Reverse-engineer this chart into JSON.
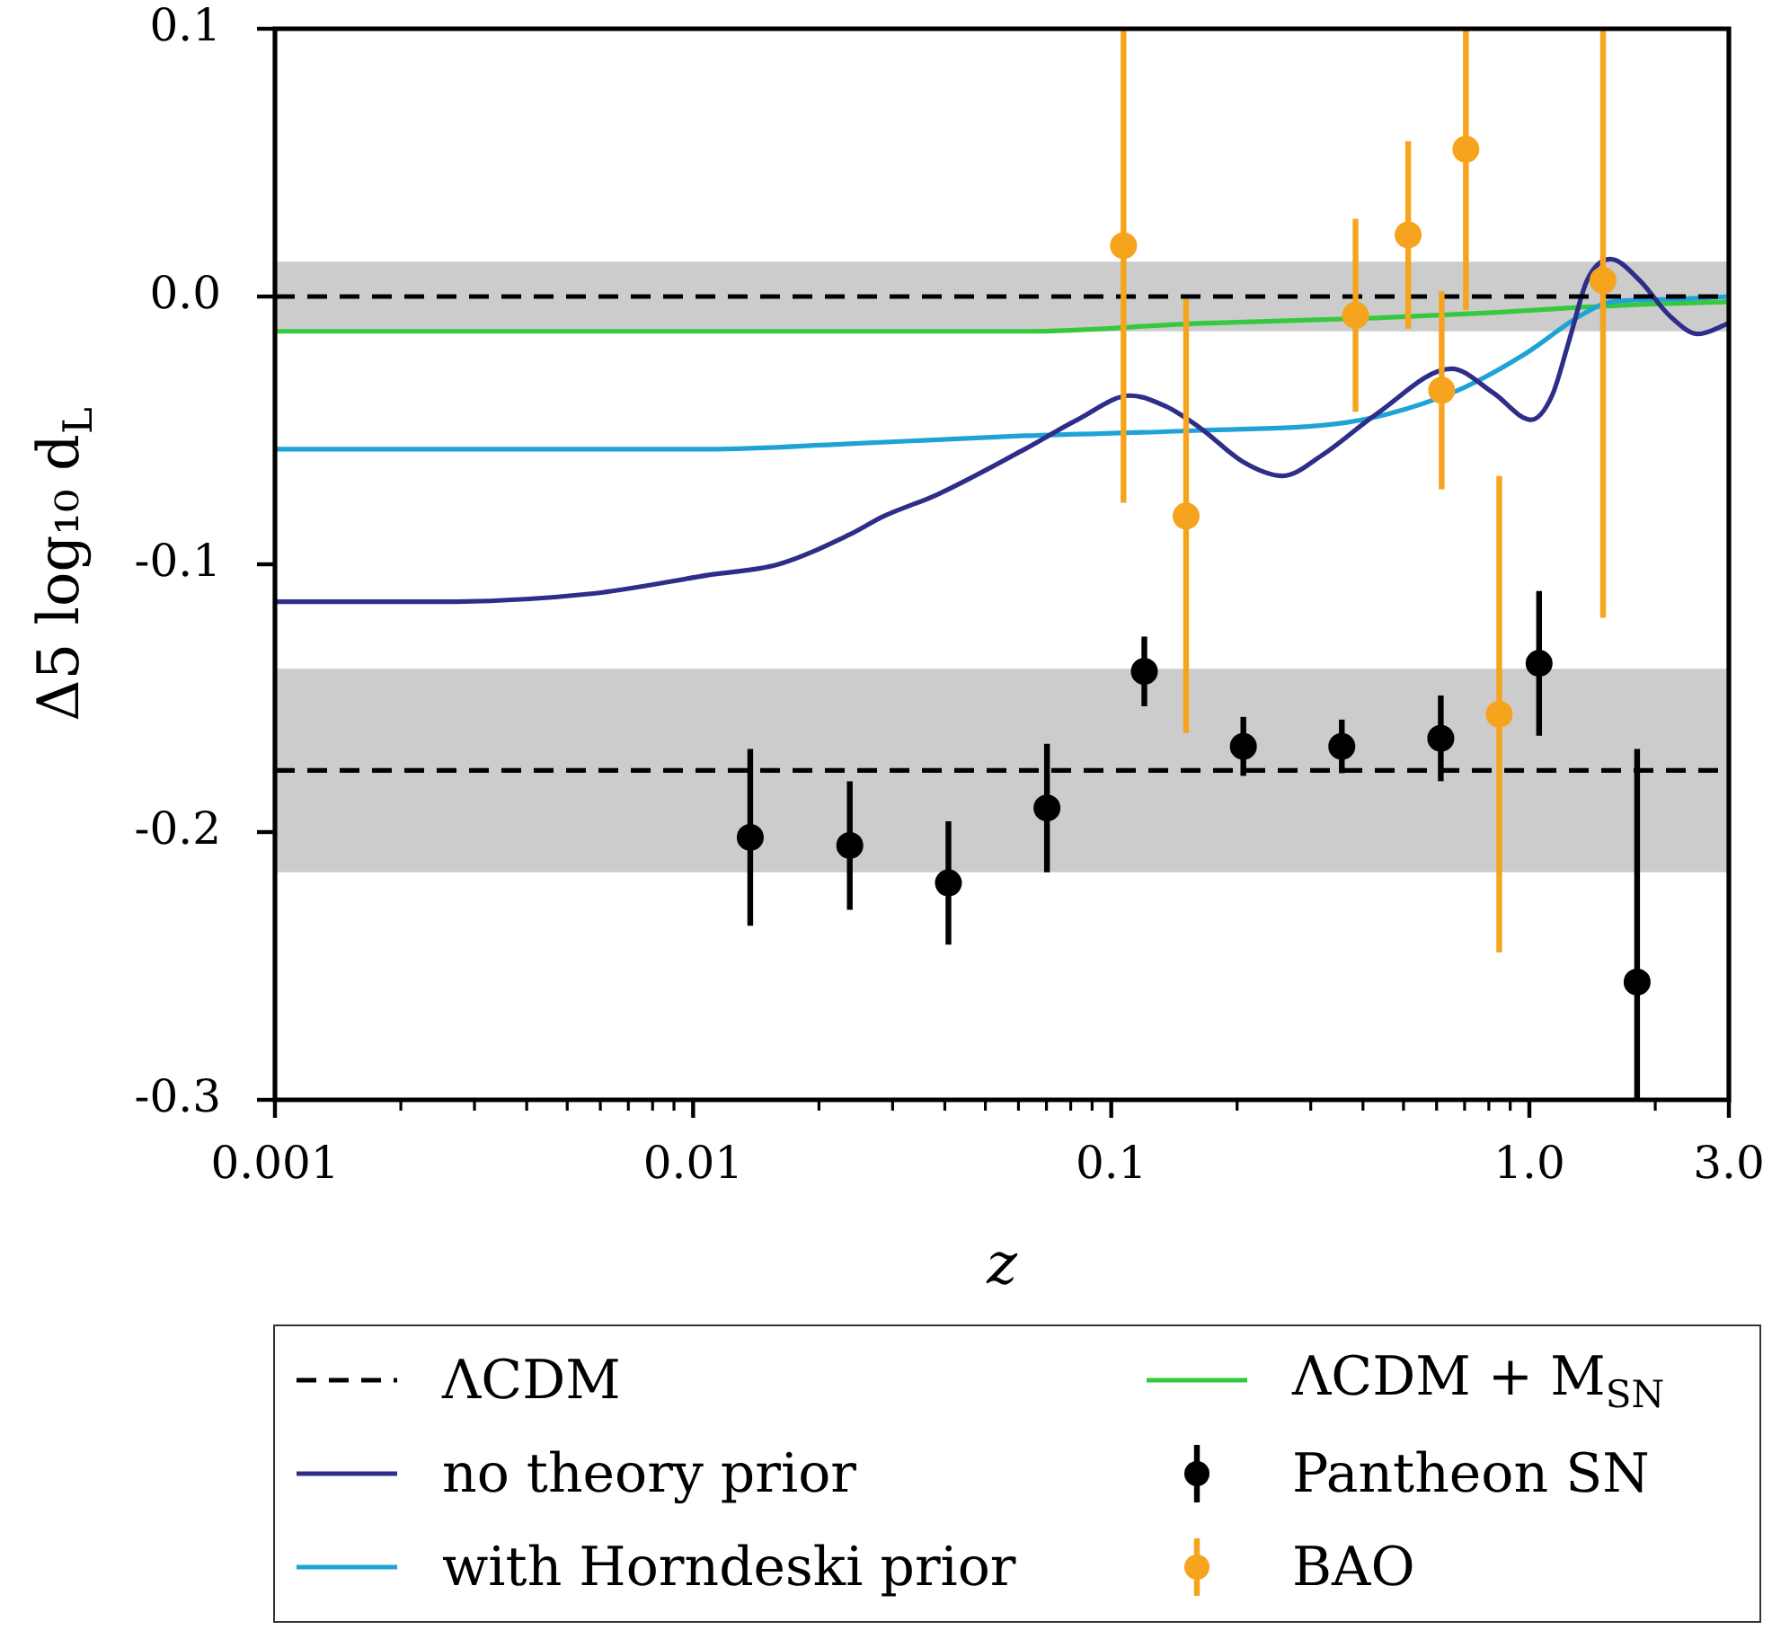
{
  "chart_data": {
    "type": "line",
    "xlabel": "z",
    "ylabel": "Δ5 log₁₀ d$_{L}$",
    "log": "x",
    "xlim": [
      0.001,
      3.0
    ],
    "xticks": [
      0.001,
      {
        "value": 0.002,
        "label": null
      },
      {
        "value": 0.003,
        "label": null
      },
      {
        "value": 0.004,
        "label": null
      },
      {
        "value": 0.005,
        "label": null
      },
      {
        "value": 0.006,
        "label": null
      },
      {
        "value": 0.007,
        "label": null
      },
      {
        "value": 0.008,
        "label": null
      },
      {
        "value": 0.009,
        "label": null
      },
      0.01,
      {
        "value": 0.02,
        "label": null
      },
      {
        "value": 0.03,
        "label": null
      },
      {
        "value": 0.04,
        "label": null
      },
      {
        "value": 0.05,
        "label": null
      },
      {
        "value": 0.06,
        "label": null
      },
      {
        "value": 0.07,
        "label": null
      },
      {
        "value": 0.08,
        "label": null
      },
      {
        "value": 0.09,
        "label": null
      },
      0.1,
      {
        "value": 0.2,
        "label": null
      },
      {
        "value": 0.3,
        "label": null
      },
      {
        "value": 0.4,
        "label": null
      },
      {
        "value": 0.5,
        "label": null
      },
      {
        "value": 0.6,
        "label": null
      },
      {
        "value": 0.7,
        "label": null
      },
      {
        "value": 0.8,
        "label": null
      },
      {
        "value": 0.9,
        "label": null
      },
      {
        "value": 1,
        "label": "1.0"
      },
      {
        "value": 2,
        "label": null
      },
      {
        "value": 3,
        "label": "3.0"
      }
    ],
    "ylim": [
      -0.3,
      0.1
    ],
    "yticks": [
      0.1,
      {
        "value": 0,
        "label": "0.0"
      },
      -0.1,
      -0.2,
      -0.3
    ],
    "bands": [
      {
        "axis": "y",
        "from": -0.013,
        "to": 0.013,
        "color": "#cccccc"
      },
      {
        "axis": "y",
        "from": -0.215,
        "to": -0.139,
        "color": "#cccccc"
      }
    ],
    "ref_lines": [
      {
        "axis": "y",
        "value": -0.177,
        "color": "#000000",
        "line_style": "dashed"
      }
    ],
    "legend": "bottom",
    "series": [
      {
        "name": "ΛCDM",
        "color": "#000000",
        "line_style": "dashed",
        "x": [
          0.001,
          3.0
        ],
        "values": [
          0,
          0
        ]
      },
      {
        "name": "no theory prior",
        "color": "#2e2e8a",
        "x": [
          0.001,
          0.0025,
          0.0057,
          0.0109,
          0.016,
          0.0236,
          0.0286,
          0.0383,
          0.0621,
          0.083,
          0.111,
          0.135,
          0.163,
          0.208,
          0.257,
          0.321,
          0.43,
          0.652,
          0.82,
          1.01,
          1.133,
          1.247,
          1.374,
          1.563,
          1.836,
          2.159,
          2.535,
          3.0
        ],
        "values": [
          -0.114,
          -0.114,
          -0.111,
          -0.104,
          -0.1,
          -0.089,
          -0.082,
          -0.074,
          -0.057,
          -0.046,
          -0.037,
          -0.041,
          -0.049,
          -0.062,
          -0.067,
          -0.059,
          -0.044,
          -0.027,
          -0.036,
          -0.046,
          -0.037,
          -0.016,
          0.006,
          0.014,
          0.006,
          -0.007,
          -0.014,
          -0.01
        ]
      },
      {
        "name": "with Horndeski prior",
        "color": "#1fa3d6",
        "x": [
          0.001,
          0.0109,
          0.0236,
          0.0621,
          0.163,
          0.366,
          0.506,
          0.698,
          0.964,
          1.33,
          1.563,
          2.159,
          3.0
        ],
        "values": [
          -0.057,
          -0.057,
          -0.055,
          -0.052,
          -0.05,
          -0.047,
          -0.042,
          -0.034,
          -0.022,
          -0.007,
          -0.002,
          -0.001,
          0.0
        ]
      },
      {
        "name": "ΛCDM + M$_{SN}$",
        "color": "#35c940",
        "x": [
          0.001,
          0.0236,
          0.0621,
          0.163,
          0.43,
          0.82,
          1.33,
          1.836,
          3.0
        ],
        "values": [
          -0.013,
          -0.013,
          -0.013,
          -0.01,
          -0.008,
          -0.006,
          -0.004,
          -0.003,
          -0.002
        ]
      },
      {
        "name": "Pantheon SN",
        "type": "scatter",
        "marker": "circle",
        "color": "#000000",
        "x": [
          0.0137,
          0.0237,
          0.0408,
          0.0702,
          0.12,
          0.207,
          0.356,
          0.614,
          1.055,
          1.81
        ],
        "values": [
          -0.202,
          -0.205,
          -0.219,
          -0.191,
          -0.14,
          -0.168,
          -0.168,
          -0.165,
          -0.137,
          -0.256
        ],
        "errors": [
          0.033,
          0.024,
          0.023,
          0.024,
          0.013,
          0.011,
          0.01,
          0.016,
          0.027,
          [
            -0.3,
            -0.169
          ]
        ]
      },
      {
        "name": "BAO",
        "type": "scatter",
        "marker": "circle",
        "color": "#f6a41e",
        "x": [
          0.107,
          0.151,
          0.384,
          0.513,
          0.617,
          0.705,
          0.847,
          1.5
        ],
        "values": [
          0.019,
          -0.082,
          -0.007,
          0.023,
          -0.035,
          0.055,
          -0.156,
          0.006
        ],
        "errors": [
          [
            -0.077,
            0.1
          ],
          0.081,
          0.036,
          0.035,
          0.037,
          [
            -0.005,
            0.1
          ],
          0.089,
          [
            -0.12,
            0.1
          ]
        ]
      }
    ]
  }
}
